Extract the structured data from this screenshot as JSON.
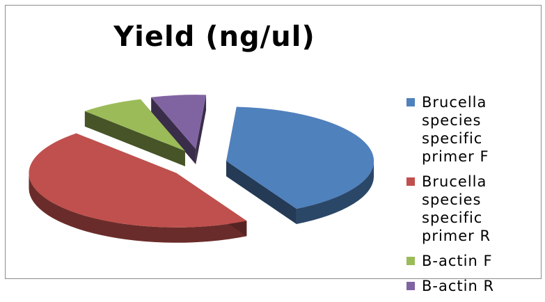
{
  "chart_data": {
    "type": "pie",
    "title": "Yield (ng/ul)",
    "legend_position": "right",
    "exploded": true,
    "three_d": true,
    "slices": [
      {
        "label": "Brucella species specific primer F",
        "value": 41,
        "color": "#4f81bd"
      },
      {
        "label": "Brucella species specific primer R",
        "value": 46,
        "color": "#c0504d"
      },
      {
        "label": "B-actin F",
        "value": 7,
        "color": "#9bbb59"
      },
      {
        "label": "B-actin R",
        "value": 6,
        "color": "#8064a2"
      }
    ]
  }
}
